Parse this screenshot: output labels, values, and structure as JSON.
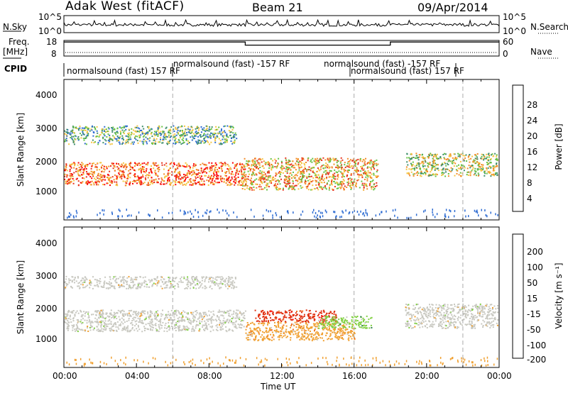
{
  "header": {
    "station": "Adak West (fitACF)",
    "beam": "Beam 21",
    "date": "09/Apr/2014"
  },
  "top_strip": {
    "nsky_label": "N.Sky",
    "nsearch_label": "N.Search",
    "freq_label_line1": "Freq.",
    "freq_label_line2": "[MHz]",
    "nave_label": "Nave",
    "cpid_label": "CPID",
    "left_ticks_noise": [
      "10^5",
      "10^0"
    ],
    "right_ticks_noise": [
      "10^5",
      "10^0"
    ],
    "left_ticks_freq": [
      "18",
      "8"
    ],
    "right_ticks_nave": [
      "60",
      "0"
    ],
    "freq_mhz_segments": [
      {
        "start_hour": 0,
        "end_hour": 10,
        "value": 17
      },
      {
        "start_hour": 10,
        "end_hour": 18,
        "value": 15
      },
      {
        "start_hour": 18,
        "end_hour": 24,
        "value": 17
      }
    ],
    "nave_approx": 10,
    "cpid_segments": [
      {
        "label": "normalsound (fast) 157 RF",
        "start_hour": 0,
        "end_hour": 6
      },
      {
        "label": "normalsound (fast) -157 RF",
        "start_hour": 6,
        "end_hour": 16
      },
      {
        "label": "normalsound (fast) -157 RF",
        "start_hour": 10,
        "end_hour": 18
      },
      {
        "label": "normalsound (fast) 157 RF",
        "start_hour": 16,
        "end_hour": 24
      }
    ]
  },
  "x_axis": {
    "label": "Time UT",
    "ticks": [
      "00:00",
      "04:00",
      "08:00",
      "12:00",
      "16:00",
      "20:00",
      "00:00"
    ]
  },
  "power_panel": {
    "ylabel": "Slant Range [km]",
    "yticks": [
      "1000",
      "2000",
      "3000",
      "4000"
    ],
    "colorbar_label": "Power [dB]",
    "colorbar_ticks": [
      "4",
      "8",
      "12",
      "16",
      "20",
      "24",
      "28"
    ]
  },
  "velocity_panel": {
    "ylabel": "Slant Range [km]",
    "yticks": [
      "1000",
      "2000",
      "3000",
      "4000"
    ],
    "colorbar_label": "Velocity [m s⁻¹]",
    "colorbar_ticks": [
      "200",
      "100",
      "50",
      "15",
      "-15",
      "-50",
      "-100",
      "-200"
    ]
  },
  "chart_data": {
    "type": "heatmap",
    "title": "Adak West (fitACF) Beam 21 09/Apr/2014",
    "xlabel": "Time UT",
    "ylabel": "Slant Range [km]",
    "xlim_hours": [
      0,
      24
    ],
    "ylim_km": [
      0,
      4600
    ],
    "grid": false,
    "dashed_lines_hours": [
      6,
      16,
      22
    ],
    "colors": {
      "power": [
        "#1a1aff",
        "#2d6bd1",
        "#3f8f6a",
        "#66c244",
        "#f4c542",
        "#f28c28",
        "#e8341c",
        "#ff0000"
      ],
      "velocity": [
        "#1f3cc8",
        "#2f7f4f",
        "#7fcf3f",
        "#c8c8c0",
        "#f0a030",
        "#f07020",
        "#e03010",
        "#ff0000"
      ]
    },
    "power_echo_regions": [
      {
        "hours": [
          0.0,
          10.0
        ],
        "range_km": [
          1150,
          1900
        ],
        "power_db": 24
      },
      {
        "hours": [
          0.0,
          9.5
        ],
        "range_km": [
          2500,
          3100
        ],
        "power_db": 14
      },
      {
        "hours": [
          9.8,
          17.3
        ],
        "range_km": [
          1000,
          2050
        ],
        "power_db": 20
      },
      {
        "hours": [
          18.8,
          23.9
        ],
        "range_km": [
          1450,
          2200
        ],
        "power_db": 16
      }
    ],
    "velocity_echo_regions": [
      {
        "hours": [
          0.0,
          10.0
        ],
        "range_km": [
          1200,
          1900
        ],
        "velocity": 0
      },
      {
        "hours": [
          0.0,
          9.5
        ],
        "range_km": [
          2600,
          3000
        ],
        "velocity": 0
      },
      {
        "hours": [
          10.5,
          15.0
        ],
        "range_km": [
          1500,
          1900
        ],
        "velocity": -150
      },
      {
        "hours": [
          10.0,
          16.0
        ],
        "range_km": [
          900,
          1500
        ],
        "velocity": -60
      },
      {
        "hours": [
          14.0,
          17.0
        ],
        "range_km": [
          1300,
          1700
        ],
        "velocity": 60
      },
      {
        "hours": [
          18.8,
          23.9
        ],
        "range_km": [
          1300,
          2100
        ],
        "velocity": 0
      }
    ]
  }
}
